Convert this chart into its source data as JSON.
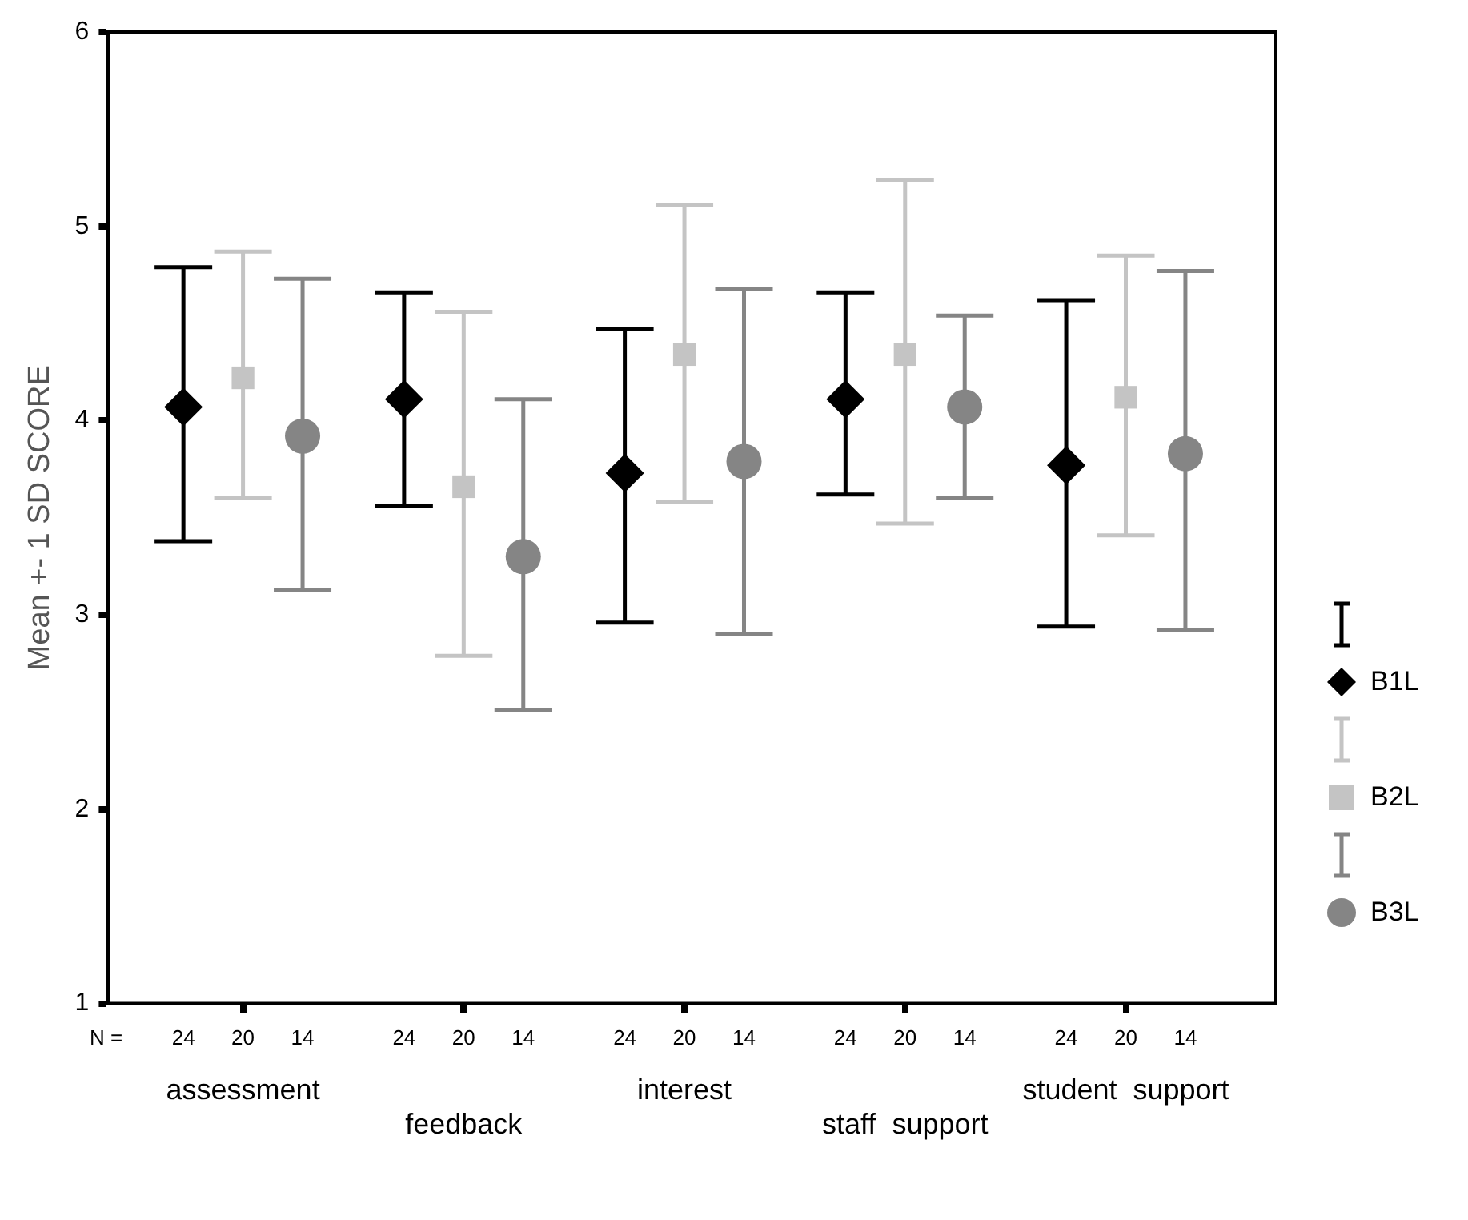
{
  "chart_data": {
    "type": "scatter",
    "ylabel": "Mean +- 1 SD SCORE",
    "categories": [
      "assessment",
      "feedback",
      "interest",
      "staff  support",
      "student  support"
    ],
    "ylim": [
      1,
      6
    ],
    "yticks": [
      1,
      2,
      3,
      4,
      5,
      6
    ],
    "grid": false,
    "legend": "right",
    "series": [
      {
        "name": "B1L",
        "color": "#000000",
        "marker": "diamond",
        "values": [
          4.07,
          4.11,
          3.73,
          4.11,
          3.77
        ],
        "errors": [
          [
            3.38,
            4.79
          ],
          [
            3.56,
            4.66
          ],
          [
            2.96,
            4.47
          ],
          [
            3.62,
            4.66
          ],
          [
            2.94,
            4.62
          ]
        ]
      },
      {
        "name": "B2L",
        "color": "#c4c4c4",
        "marker": "square",
        "values": [
          4.22,
          3.66,
          4.34,
          4.34,
          4.12
        ],
        "errors": [
          [
            3.6,
            4.87
          ],
          [
            2.79,
            4.56
          ],
          [
            3.58,
            5.11
          ],
          [
            3.47,
            5.24
          ],
          [
            3.41,
            4.85
          ]
        ]
      },
      {
        "name": "B3L",
        "color": "#858585",
        "marker": "circle",
        "values": [
          3.92,
          3.3,
          3.79,
          4.07,
          3.83
        ],
        "errors": [
          [
            3.13,
            4.73
          ],
          [
            2.51,
            4.11
          ],
          [
            2.9,
            4.68
          ],
          [
            3.6,
            4.54
          ],
          [
            2.92,
            4.77
          ]
        ]
      }
    ],
    "annotations": [
      "N =",
      "24",
      "20",
      "14",
      "24",
      "20",
      "14",
      "24",
      "20",
      "14",
      "24",
      "20",
      "14",
      "24",
      "20",
      "14"
    ]
  }
}
